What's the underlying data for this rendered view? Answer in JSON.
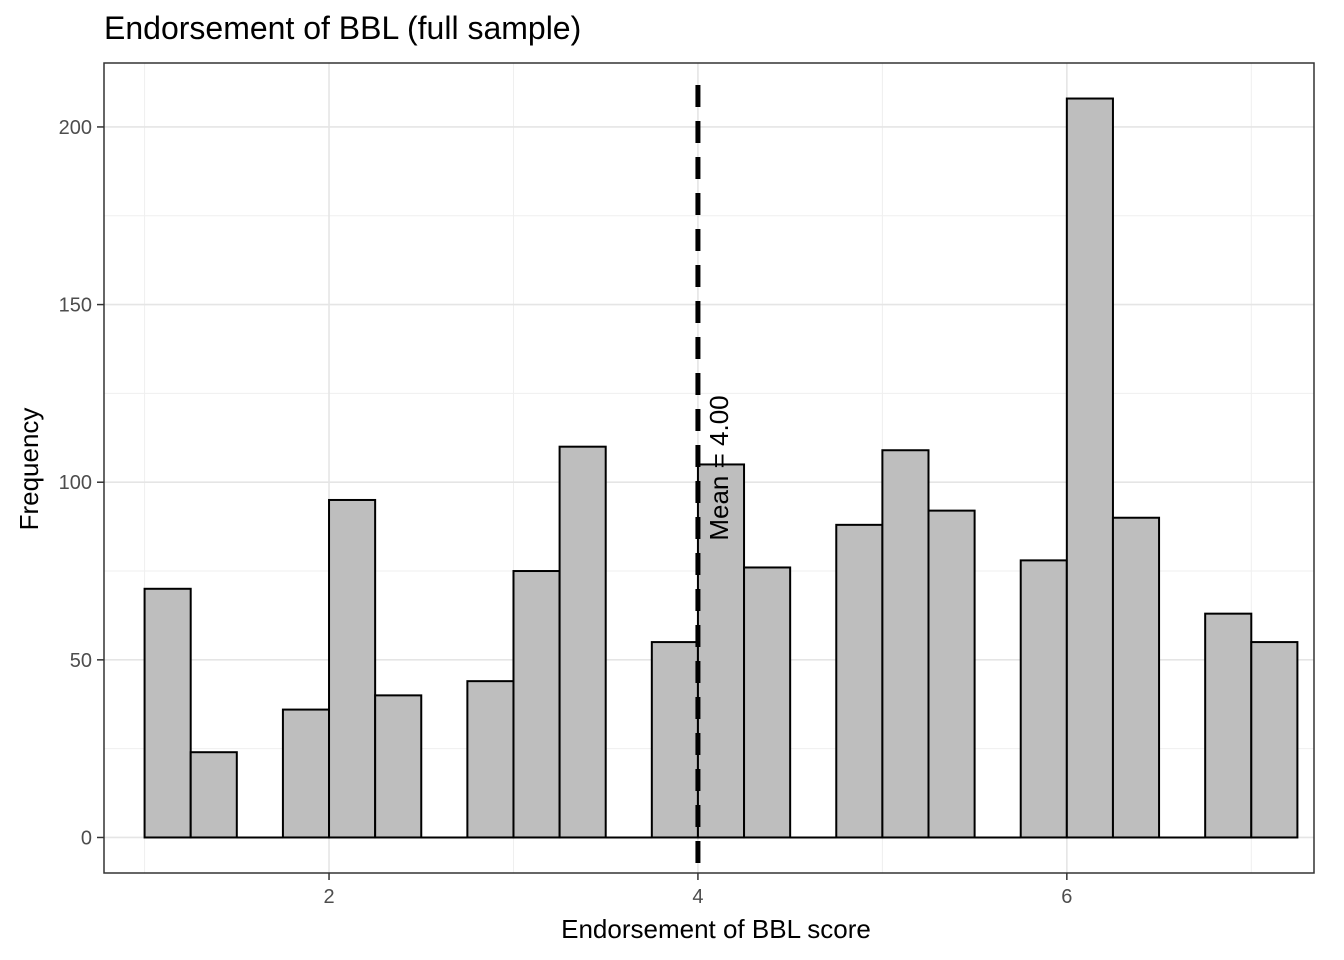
{
  "chart_data": {
    "type": "bar",
    "title": "Endorsement of BBL (full sample)",
    "xlabel": "Endorsement of BBL score",
    "ylabel": "Frequency",
    "xlim": [
      0.78,
      7.34
    ],
    "ylim": [
      -10,
      218
    ],
    "x_ticks": [
      2,
      4,
      6
    ],
    "y_ticks": [
      0,
      50,
      100,
      150,
      200
    ],
    "grid": true,
    "bar_fill": "#BEBEBE",
    "bar_stroke": "#000000",
    "bins": [
      {
        "x0": 1.0,
        "x1": 1.25,
        "value": 70
      },
      {
        "x0": 1.25,
        "x1": 1.5,
        "value": 24
      },
      {
        "x0": 1.5,
        "x1": 1.75,
        "value": 0
      },
      {
        "x0": 1.75,
        "x1": 2.0,
        "value": 36
      },
      {
        "x0": 2.0,
        "x1": 2.25,
        "value": 95
      },
      {
        "x0": 2.25,
        "x1": 2.5,
        "value": 40
      },
      {
        "x0": 2.5,
        "x1": 2.75,
        "value": 0
      },
      {
        "x0": 2.75,
        "x1": 3.0,
        "value": 44
      },
      {
        "x0": 3.0,
        "x1": 3.25,
        "value": 75
      },
      {
        "x0": 3.25,
        "x1": 3.5,
        "value": 110
      },
      {
        "x0": 3.5,
        "x1": 3.75,
        "value": 0
      },
      {
        "x0": 3.75,
        "x1": 4.0,
        "value": 55
      },
      {
        "x0": 4.0,
        "x1": 4.25,
        "value": 105
      },
      {
        "x0": 4.25,
        "x1": 4.5,
        "value": 76
      },
      {
        "x0": 4.5,
        "x1": 4.75,
        "value": 0
      },
      {
        "x0": 4.75,
        "x1": 5.0,
        "value": 88
      },
      {
        "x0": 5.0,
        "x1": 5.25,
        "value": 109
      },
      {
        "x0": 5.25,
        "x1": 5.5,
        "value": 92
      },
      {
        "x0": 5.5,
        "x1": 5.75,
        "value": 0
      },
      {
        "x0": 5.75,
        "x1": 6.0,
        "value": 78
      },
      {
        "x0": 6.0,
        "x1": 6.25,
        "value": 208
      },
      {
        "x0": 6.25,
        "x1": 6.5,
        "value": 90
      },
      {
        "x0": 6.5,
        "x1": 6.75,
        "value": 0
      },
      {
        "x0": 6.75,
        "x1": 7.0,
        "value": 63
      },
      {
        "x0": 7.0,
        "x1": 7.25,
        "value": 55
      }
    ],
    "mean_line": {
      "x": 4.0,
      "label": "Mean = 4.00",
      "style": "dashed",
      "color": "#000000"
    }
  }
}
